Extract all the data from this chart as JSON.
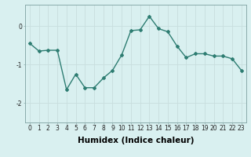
{
  "xlabel": "Humidex (Indice chaleur)",
  "ylabel": "",
  "x": [
    0,
    1,
    2,
    3,
    4,
    5,
    6,
    7,
    8,
    9,
    10,
    11,
    12,
    13,
    14,
    15,
    16,
    17,
    18,
    19,
    20,
    21,
    22,
    23
  ],
  "y": [
    -0.45,
    -0.65,
    -0.63,
    -0.63,
    -1.65,
    -1.25,
    -1.6,
    -1.6,
    -1.35,
    -1.15,
    -0.75,
    -0.12,
    -0.1,
    0.25,
    -0.07,
    -0.15,
    -0.52,
    -0.82,
    -0.72,
    -0.72,
    -0.78,
    -0.78,
    -0.85,
    -1.15
  ],
  "line_color": "#2e7d72",
  "marker": "D",
  "marker_size": 2.0,
  "bg_color": "#d9f0f0",
  "grid_color": "#c8dede",
  "tick_label_fontsize": 5.5,
  "axis_label_fontsize": 7.5,
  "ylim": [
    -2.5,
    0.55
  ],
  "yticks": [
    -2,
    -1,
    0
  ],
  "line_width": 1.0
}
